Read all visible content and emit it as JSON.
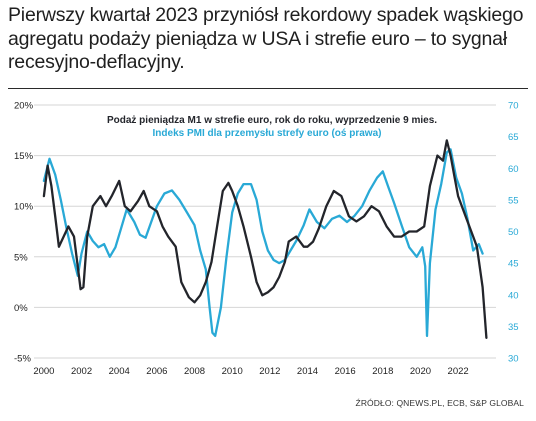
{
  "headline": "Pierwszy kwartał 2023 przyniósł rekordowy spadek wąskiego agregatu podaży pieniądza w USA i strefie euro – to sygnał recesyjno-deflacyjny.",
  "source": "ŹRÓDŁO: QNEWS.PL, ECB, S&P GLOBAL",
  "chart_data": {
    "type": "line",
    "title": "",
    "xlabel": "",
    "ylabel": "",
    "xlim": [
      1999.9,
      2023.8
    ],
    "x_ticks": [
      "2000",
      "2002",
      "2004",
      "2006",
      "2008",
      "2010",
      "2012",
      "2014",
      "2016",
      "2018",
      "2020",
      "2022"
    ],
    "y_left": {
      "lim": [
        -5,
        20
      ],
      "ticks": [
        "-5%",
        "0%",
        "5%",
        "10%",
        "15%",
        "20%"
      ],
      "tick_values": [
        -5,
        0,
        5,
        10,
        15,
        20
      ],
      "color": "#1f1f1f"
    },
    "y_right": {
      "lim": [
        30,
        70
      ],
      "ticks": [
        "30",
        "35",
        "40",
        "45",
        "50",
        "55",
        "60",
        "65",
        "70"
      ],
      "tick_values": [
        30,
        35,
        40,
        45,
        50,
        55,
        60,
        65,
        70
      ],
      "color": "#29a9d6"
    },
    "grid": "horizontal",
    "series": [
      {
        "name": "Podaż pieniądza M1 w strefie euro, rok do roku, wyprzedzenie 9 mies.",
        "axis": "left",
        "color": "#23252b",
        "x": [
          2000.0,
          2000.2,
          2000.4,
          2000.6,
          2000.8,
          2001.0,
          2001.3,
          2001.6,
          2001.8,
          2001.95,
          2002.1,
          2002.3,
          2002.6,
          2003.0,
          2003.3,
          2003.6,
          2004.0,
          2004.3,
          2004.6,
          2005.0,
          2005.3,
          2005.6,
          2006.0,
          2006.3,
          2006.6,
          2007.0,
          2007.3,
          2007.7,
          2008.0,
          2008.3,
          2008.6,
          2008.9,
          2009.2,
          2009.5,
          2009.8,
          2010.0,
          2010.3,
          2010.6,
          2011.0,
          2011.3,
          2011.6,
          2011.9,
          2012.2,
          2012.5,
          2012.8,
          2013.0,
          2013.4,
          2013.8,
          2014.0,
          2014.3,
          2014.6,
          2015.0,
          2015.4,
          2015.8,
          2016.2,
          2016.6,
          2017.0,
          2017.4,
          2017.8,
          2018.2,
          2018.6,
          2019.0,
          2019.4,
          2019.8,
          2020.2,
          2020.5,
          2020.9,
          2021.2,
          2021.4,
          2021.6,
          2021.8,
          2022.0,
          2022.4,
          2022.8,
          2023.0,
          2023.3,
          2023.5
        ],
        "values": [
          11.0,
          14.0,
          12.0,
          9.0,
          6.0,
          6.8,
          8.0,
          7.0,
          4.0,
          1.8,
          2.0,
          7.0,
          10.0,
          11.0,
          10.0,
          11.0,
          12.5,
          10.0,
          9.5,
          10.5,
          11.5,
          10.0,
          9.5,
          8.0,
          7.0,
          6.0,
          2.5,
          1.0,
          0.5,
          1.2,
          2.5,
          4.5,
          8.0,
          11.5,
          12.3,
          11.5,
          10.0,
          8.0,
          5.0,
          2.5,
          1.2,
          1.5,
          2.0,
          3.0,
          4.5,
          6.5,
          7.0,
          6.0,
          6.0,
          6.5,
          7.8,
          10.0,
          11.5,
          11.0,
          9.0,
          8.5,
          9.0,
          10.0,
          9.5,
          8.0,
          7.0,
          7.0,
          7.5,
          7.5,
          8.0,
          12.0,
          15.0,
          14.5,
          16.5,
          15.0,
          13.0,
          11.0,
          9.0,
          7.0,
          6.0,
          2.0,
          -3.0
        ]
      },
      {
        "name": "Indeks PMI dla przemysłu strefy euro (oś prawa)",
        "axis": "right",
        "color": "#29a9d6",
        "x": [
          2000.0,
          2000.3,
          2000.6,
          2000.9,
          2001.2,
          2001.5,
          2001.8,
          2002.0,
          2002.3,
          2002.6,
          2002.9,
          2003.2,
          2003.5,
          2003.8,
          2004.1,
          2004.4,
          2004.8,
          2005.1,
          2005.4,
          2005.7,
          2006.0,
          2006.4,
          2006.8,
          2007.2,
          2007.6,
          2008.0,
          2008.3,
          2008.6,
          2008.8,
          2008.95,
          2009.1,
          2009.4,
          2009.7,
          2010.0,
          2010.3,
          2010.6,
          2011.0,
          2011.3,
          2011.6,
          2011.9,
          2012.2,
          2012.5,
          2012.8,
          2013.1,
          2013.4,
          2013.8,
          2014.1,
          2014.5,
          2014.9,
          2015.3,
          2015.7,
          2016.1,
          2016.5,
          2016.9,
          2017.3,
          2017.7,
          2018.0,
          2018.3,
          2018.6,
          2019.0,
          2019.4,
          2019.8,
          2020.1,
          2020.25,
          2020.35,
          2020.5,
          2020.8,
          2021.1,
          2021.4,
          2021.6,
          2021.9,
          2022.2,
          2022.5,
          2022.8,
          2023.1,
          2023.3
        ],
        "values": [
          58.0,
          61.5,
          59.0,
          55.0,
          50.5,
          46.5,
          43.0,
          46.5,
          50.0,
          48.5,
          47.5,
          48.0,
          46.0,
          47.5,
          50.5,
          53.5,
          51.5,
          49.5,
          49.0,
          51.5,
          54.0,
          56.0,
          56.5,
          55.0,
          53.0,
          51.0,
          47.0,
          44.0,
          38.0,
          34.0,
          33.5,
          38.0,
          46.0,
          53.0,
          56.0,
          57.5,
          57.5,
          55.0,
          50.0,
          47.0,
          45.5,
          45.0,
          45.5,
          47.0,
          48.5,
          51.0,
          53.5,
          51.5,
          50.5,
          52.0,
          52.5,
          51.5,
          52.5,
          54.0,
          56.5,
          58.5,
          59.5,
          57.0,
          54.5,
          51.0,
          47.5,
          46.0,
          47.5,
          44.5,
          33.5,
          45.0,
          53.5,
          57.5,
          62.5,
          63.0,
          58.5,
          56.0,
          52.0,
          47.0,
          48.0,
          46.5
        ]
      }
    ],
    "legend_position": "top-center"
  }
}
